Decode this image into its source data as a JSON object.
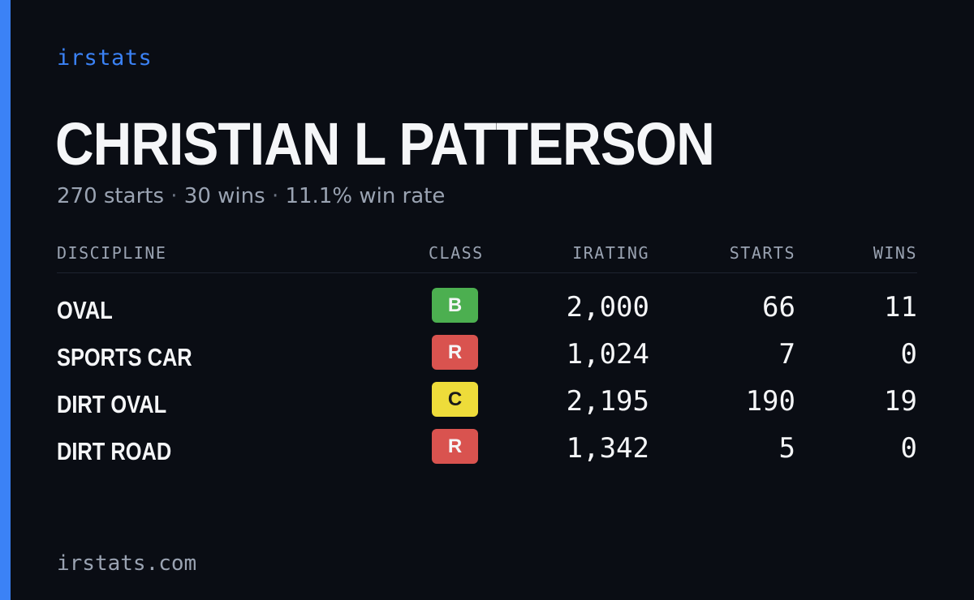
{
  "brand": "irstats",
  "driver": {
    "name": "CHRISTIAN L PATTERSON",
    "starts_text": "270 starts",
    "wins_text": "30 wins",
    "win_rate_text": "11.1% win rate",
    "separator": "·"
  },
  "table": {
    "headers": {
      "discipline": "DISCIPLINE",
      "class": "CLASS",
      "irating": "IRATING",
      "starts": "STARTS",
      "wins": "WINS"
    },
    "rows": [
      {
        "discipline": "OVAL",
        "class": "B",
        "irating": "2,000",
        "starts": "66",
        "wins": "11"
      },
      {
        "discipline": "SPORTS CAR",
        "class": "R",
        "irating": "1,024",
        "starts": "7",
        "wins": "0"
      },
      {
        "discipline": "DIRT OVAL",
        "class": "C",
        "irating": "2,195",
        "starts": "190",
        "wins": "19"
      },
      {
        "discipline": "DIRT ROAD",
        "class": "R",
        "irating": "1,342",
        "starts": "5",
        "wins": "0"
      }
    ]
  },
  "class_colors": {
    "B": "#4caf50",
    "R": "#d9534f",
    "C": "#eedc3a"
  },
  "accent_color": "#3b82f6",
  "background_color": "#0a0d14",
  "footer": {
    "url": "irstats.com"
  }
}
